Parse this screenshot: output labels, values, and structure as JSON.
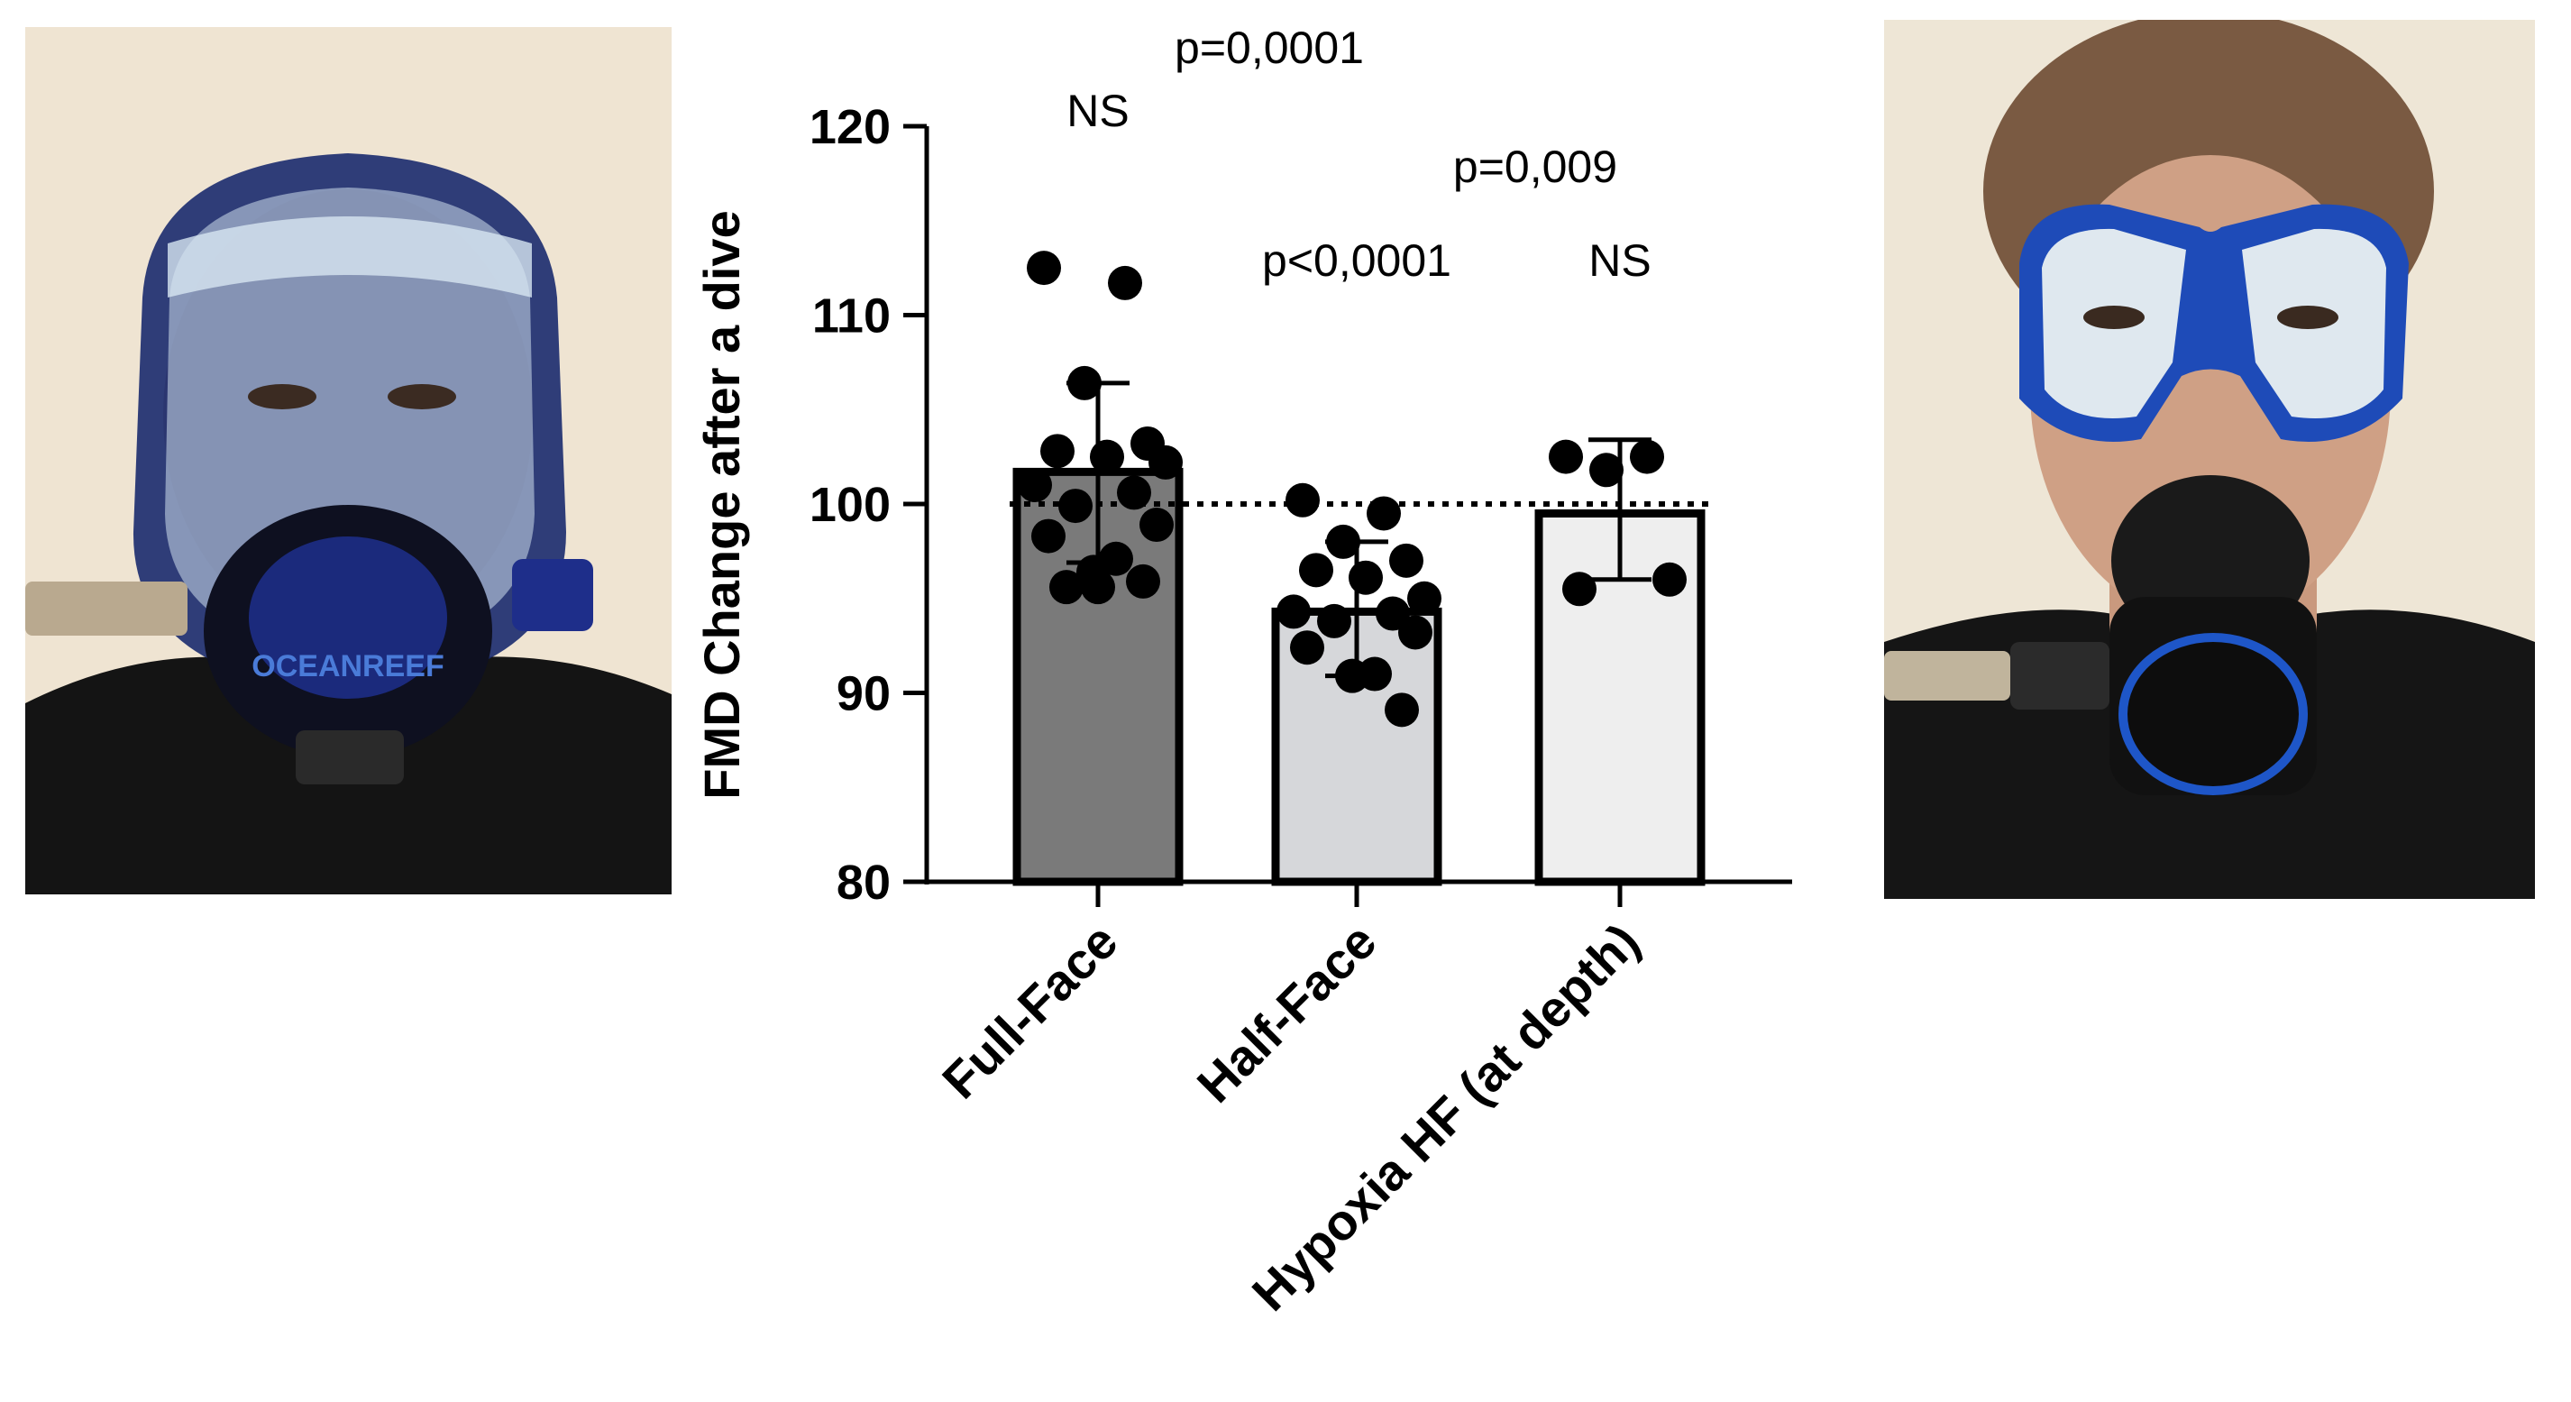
{
  "photos": {
    "left": {
      "subject": "full-face diving mask",
      "brand_text": "OCEANREEF"
    },
    "right": {
      "subject": "half-face diving mask with regulator"
    }
  },
  "chart_data": {
    "type": "bar",
    "title": "",
    "ylabel": "FMD Change after a dive",
    "xlabel": "",
    "ylim": [
      80,
      120
    ],
    "yticks": [
      80,
      90,
      100,
      110,
      120
    ],
    "ytick_labels": [
      "80",
      "90",
      "100",
      "110",
      "120"
    ],
    "reference_line": 100,
    "categories": [
      "Full-Face",
      "Half-Face",
      "Hypoxia HF (at depth)"
    ],
    "bar_colors": [
      "#7a7a7a",
      "#d6d7da",
      "#eeeeee"
    ],
    "values": [
      101.7,
      94.3,
      99.5
    ],
    "error": [
      {
        "low": 96.9,
        "high": 106.4
      },
      {
        "low": 90.9,
        "high": 98.0
      },
      {
        "low": 96.0,
        "high": 103.4
      }
    ],
    "points": [
      [
        112.5,
        111.7,
        106.4,
        103.2,
        102.8,
        102.5,
        102.2,
        101.0,
        100.6,
        99.9,
        98.9,
        98.3,
        97.1,
        96.4,
        95.9,
        95.6,
        95.6
      ],
      [
        100.2,
        99.5,
        98.0,
        97.0,
        96.5,
        96.1,
        95.0,
        94.3,
        94.2,
        93.8,
        93.2,
        92.4,
        91.0,
        90.9,
        89.1
      ],
      [
        102.5,
        102.5,
        101.8,
        96.0,
        95.5
      ]
    ],
    "annotations": {
      "full_face_ns": "NS",
      "ff_vs_hf": "p=0,0001",
      "half_face_p": "p<0,0001",
      "hf_vs_hypoxia": "p=0,009",
      "hypoxia_ns": "NS"
    }
  }
}
